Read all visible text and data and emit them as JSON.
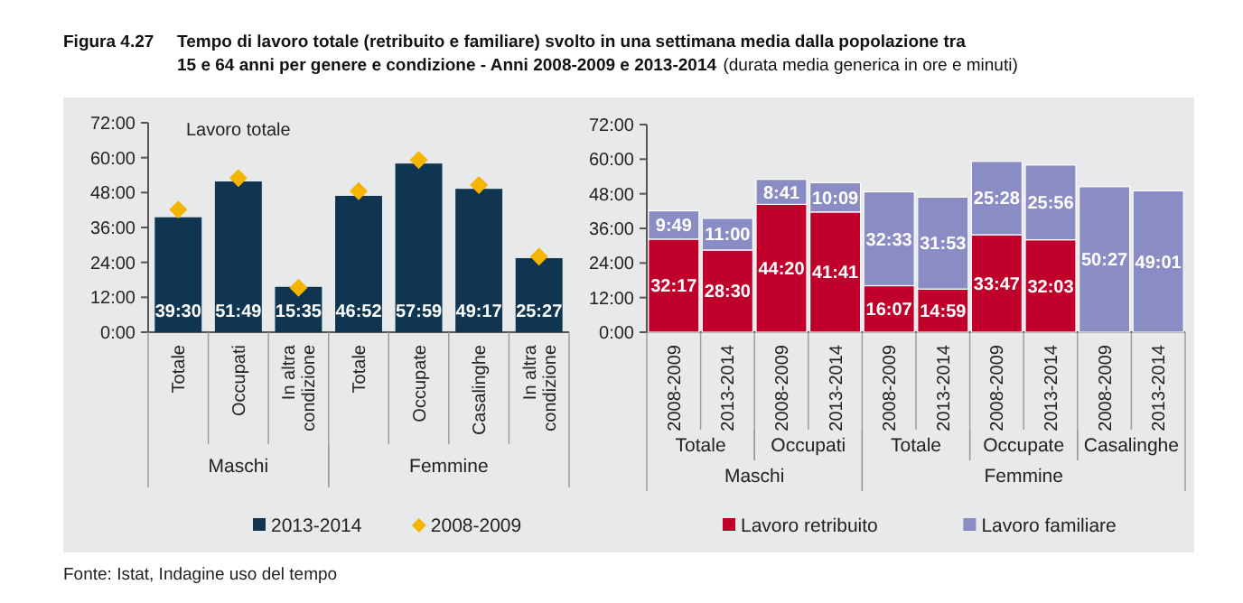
{
  "chart_data": [
    {
      "type": "bar",
      "title": "Figura 4.27    Tempo di lavoro totale (retribuito e familiare) svolto in una settimana media dalla popolazione tra 15 e 64 anni per genere e condizione - Anni 2008-2009 e 2013-2014",
      "categories": [
        "Totale",
        "Occupati",
        "In altra condizione",
        "Totale",
        "Occupate",
        "Casalinghe",
        "In altra condizione"
      ],
      "series": [
        {
          "type": "bar",
          "name": "2013-2014",
          "color": "#0f3550",
          "values": [
            39.5,
            51.82,
            15.58,
            46.87,
            57.98,
            49.28,
            25.45
          ],
          "value_labels": [
            "39:30",
            "51:49",
            "15:35",
            "46:52",
            "57:59",
            "49:17",
            "25:27"
          ]
        },
        {
          "type": "scatter",
          "name": "2008-2009",
          "color": "#f5b400",
          "marker": "diamond",
          "values": [
            42.1,
            53.0,
            15.3,
            48.5,
            59.2,
            50.6,
            26.0
          ]
        }
      ],
      "ylim": [
        0,
        72
      ],
      "yticks": [
        {
          "value": 0,
          "label": "0:00"
        },
        {
          "value": 12,
          "label": "12:00"
        },
        {
          "value": 24,
          "label": "24:00"
        },
        {
          "value": 36,
          "label": "36:00"
        },
        {
          "value": 48,
          "label": "48:00"
        },
        {
          "value": 60,
          "label": "60:00"
        },
        {
          "value": 72,
          "label": "72:00"
        }
      ],
      "legend": "bottom",
      "annotations": [
        "Lavoro totale",
        "Maschi",
        "Femmine",
        "Fonte: Istat, Indagine uso del tempo"
      ]
    },
    {
      "type": "bar",
      "stacked": true,
      "subtitle": "(durata media generica in ore e minuti)",
      "categories": [
        "2008-2009",
        "2013-2014",
        "2008-2009",
        "2013-2014",
        "2008-2009",
        "2013-2014",
        "2008-2009",
        "2013-2014",
        "2008-2009",
        "2013-2014"
      ],
      "series": [
        {
          "name": "Lavoro retribuito",
          "color": "#c0002a",
          "values": [
            32.28,
            28.5,
            44.33,
            41.68,
            16.12,
            14.98,
            33.78,
            32.05,
            null,
            null
          ],
          "value_labels": [
            "32:17",
            "28:30",
            "44:20",
            "41:41",
            "16:07",
            "14:59",
            "33:47",
            "32:03",
            null,
            null
          ]
        },
        {
          "name": "Lavoro familiare",
          "color": "#8a8cc4",
          "values": [
            9.82,
            11.0,
            8.68,
            10.15,
            32.55,
            31.88,
            25.47,
            25.93,
            50.45,
            49.02
          ],
          "value_labels": [
            "9:49",
            "11:00",
            "8:41",
            "10:09",
            "32:33",
            "31:53",
            "25:28",
            "25:56",
            "50:27",
            "49:01"
          ]
        }
      ],
      "ylim": [
        0,
        72
      ],
      "yticks": [
        {
          "value": 0,
          "label": "0:00"
        },
        {
          "value": 12,
          "label": "12:00"
        },
        {
          "value": 24,
          "label": "24:00"
        },
        {
          "value": 36,
          "label": "36:00"
        },
        {
          "value": 48,
          "label": "48:00"
        },
        {
          "value": 60,
          "label": "60:00"
        },
        {
          "value": 72,
          "label": "72:00"
        }
      ],
      "legend": "bottom",
      "annotations": [
        "Totale",
        "Occupati",
        "Totale",
        "Occupate",
        "Casalinghe",
        "Maschi",
        "Femmine"
      ]
    }
  ]
}
